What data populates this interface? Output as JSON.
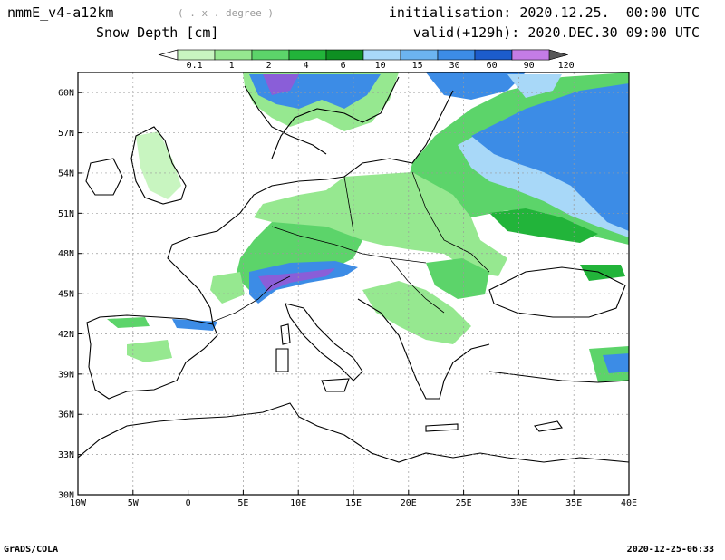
{
  "header": {
    "model": "nmmE_v4-a12km",
    "grid_note": "( . x . degree )",
    "variable": "Snow Depth [cm]",
    "init": "initialisation: 2020.12.25.  00:00 UTC",
    "valid": "valid(+129h): 2020.DEC.30 09:00 UTC"
  },
  "colorbar": {
    "labels": [
      "0.1",
      "1",
      "2",
      "4",
      "6",
      "10",
      "15",
      "30",
      "60",
      "90",
      "120"
    ],
    "colors": [
      "#c8f5c0",
      "#96e890",
      "#5cd46a",
      "#22b43a",
      "#0e8f22",
      "#a8d8f8",
      "#6cb4f0",
      "#3c8ce6",
      "#1c5ccc",
      "#8a5ed8",
      "#c47ce6",
      "#585858"
    ]
  },
  "map": {
    "lat_labels": [
      "60N",
      "57N",
      "54N",
      "51N",
      "48N",
      "45N",
      "42N",
      "39N",
      "36N",
      "33N",
      "30N"
    ],
    "lon_labels": [
      "10W",
      "5W",
      "0",
      "5E",
      "10E",
      "15E",
      "20E",
      "25E",
      "30E",
      "35E",
      "40E"
    ],
    "lon_range": [
      -10,
      40
    ],
    "lat_range": [
      30,
      61.5
    ]
  },
  "footer": {
    "left": "GrADS/COLA",
    "right": "2020-12-25-06:33"
  }
}
